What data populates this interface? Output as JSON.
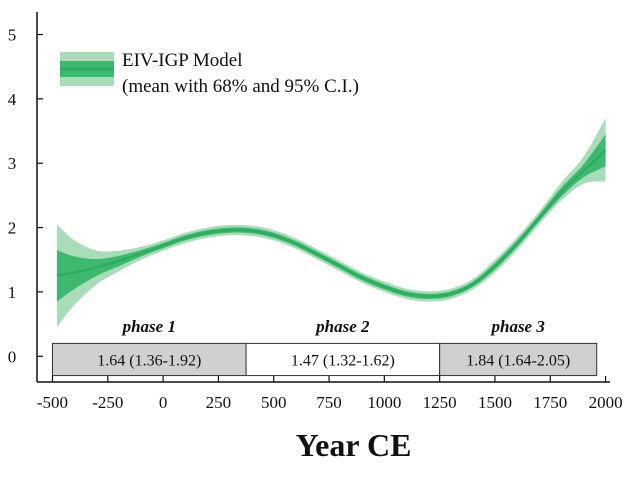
{
  "chart_data": {
    "type": "line",
    "title": "",
    "xlabel": "Year CE",
    "ylabel": "",
    "xlim": [
      -570,
      2020
    ],
    "ylim": [
      -0.4,
      5.35
    ],
    "x_ticks": [
      -500,
      -250,
      0,
      250,
      500,
      750,
      1000,
      1250,
      1500,
      1750,
      2000
    ],
    "x_tick_labels": [
      "-500",
      "-250",
      "0",
      "250",
      "500",
      "750",
      "1000",
      "1250",
      "1500",
      "1750",
      "2000"
    ],
    "y_ticks": [
      0,
      1,
      2,
      3,
      4,
      5
    ],
    "y_tick_labels": [
      "0",
      "1",
      "2",
      "3",
      "4",
      "5"
    ],
    "grid": false,
    "legend": {
      "placement": "top-left",
      "line1": "EIV-IGP Model",
      "line2": "(mean with 68% and 95% C.I.)"
    },
    "colors": {
      "mean_line": "#2faa62",
      "band68": "#3db86f",
      "band95": "#a9dcb9",
      "phase_shaded": "#d0d0d0",
      "phase_border": "#333333",
      "axis": "#111111"
    },
    "series": [
      {
        "name": "EIV-IGP Model",
        "x": [
          -480,
          -400,
          -300,
          -200,
          -100,
          0,
          100,
          200,
          300,
          400,
          500,
          600,
          700,
          800,
          900,
          1000,
          1100,
          1200,
          1300,
          1400,
          1500,
          1600,
          1700,
          1800,
          1900,
          2000
        ],
        "mean": [
          1.25,
          1.3,
          1.38,
          1.48,
          1.6,
          1.72,
          1.84,
          1.92,
          1.96,
          1.95,
          1.88,
          1.75,
          1.58,
          1.4,
          1.22,
          1.08,
          0.97,
          0.93,
          0.97,
          1.12,
          1.4,
          1.75,
          2.15,
          2.55,
          2.88,
          3.2
        ],
        "lower68": [
          0.85,
          1.05,
          1.25,
          1.4,
          1.55,
          1.68,
          1.8,
          1.88,
          1.92,
          1.91,
          1.84,
          1.71,
          1.54,
          1.36,
          1.18,
          1.04,
          0.93,
          0.89,
          0.93,
          1.08,
          1.35,
          1.7,
          2.1,
          2.48,
          2.78,
          2.95
        ],
        "upper68": [
          1.65,
          1.55,
          1.51,
          1.56,
          1.65,
          1.76,
          1.88,
          1.96,
          2.0,
          1.99,
          1.92,
          1.79,
          1.62,
          1.44,
          1.26,
          1.12,
          1.01,
          0.97,
          1.01,
          1.16,
          1.45,
          1.8,
          2.2,
          2.62,
          2.98,
          3.45
        ],
        "lower95": [
          0.45,
          0.8,
          1.12,
          1.32,
          1.5,
          1.64,
          1.76,
          1.84,
          1.88,
          1.87,
          1.8,
          1.67,
          1.5,
          1.32,
          1.14,
          1.0,
          0.89,
          0.85,
          0.89,
          1.04,
          1.3,
          1.65,
          2.05,
          2.42,
          2.68,
          2.72
        ],
        "upper95": [
          2.05,
          1.8,
          1.64,
          1.64,
          1.7,
          1.8,
          1.92,
          2.0,
          2.04,
          2.03,
          1.96,
          1.83,
          1.66,
          1.48,
          1.3,
          1.16,
          1.05,
          1.01,
          1.05,
          1.2,
          1.5,
          1.85,
          2.25,
          2.7,
          3.1,
          3.7
        ]
      }
    ],
    "phases": [
      {
        "label": "phase 1",
        "value": "1.64 (1.36-1.92)",
        "x_start": -500,
        "x_end": 375,
        "shaded": true
      },
      {
        "label": "phase 2",
        "value": "1.47 (1.32-1.62)",
        "x_start": 375,
        "x_end": 1250,
        "shaded": false
      },
      {
        "label": "phase 3",
        "value": "1.84 (1.64-2.05)",
        "x_start": 1250,
        "x_end": 1960,
        "shaded": true
      }
    ],
    "phase_box_y_range": [
      -0.3,
      0.2
    ],
    "phase_label_y": 0.38
  }
}
